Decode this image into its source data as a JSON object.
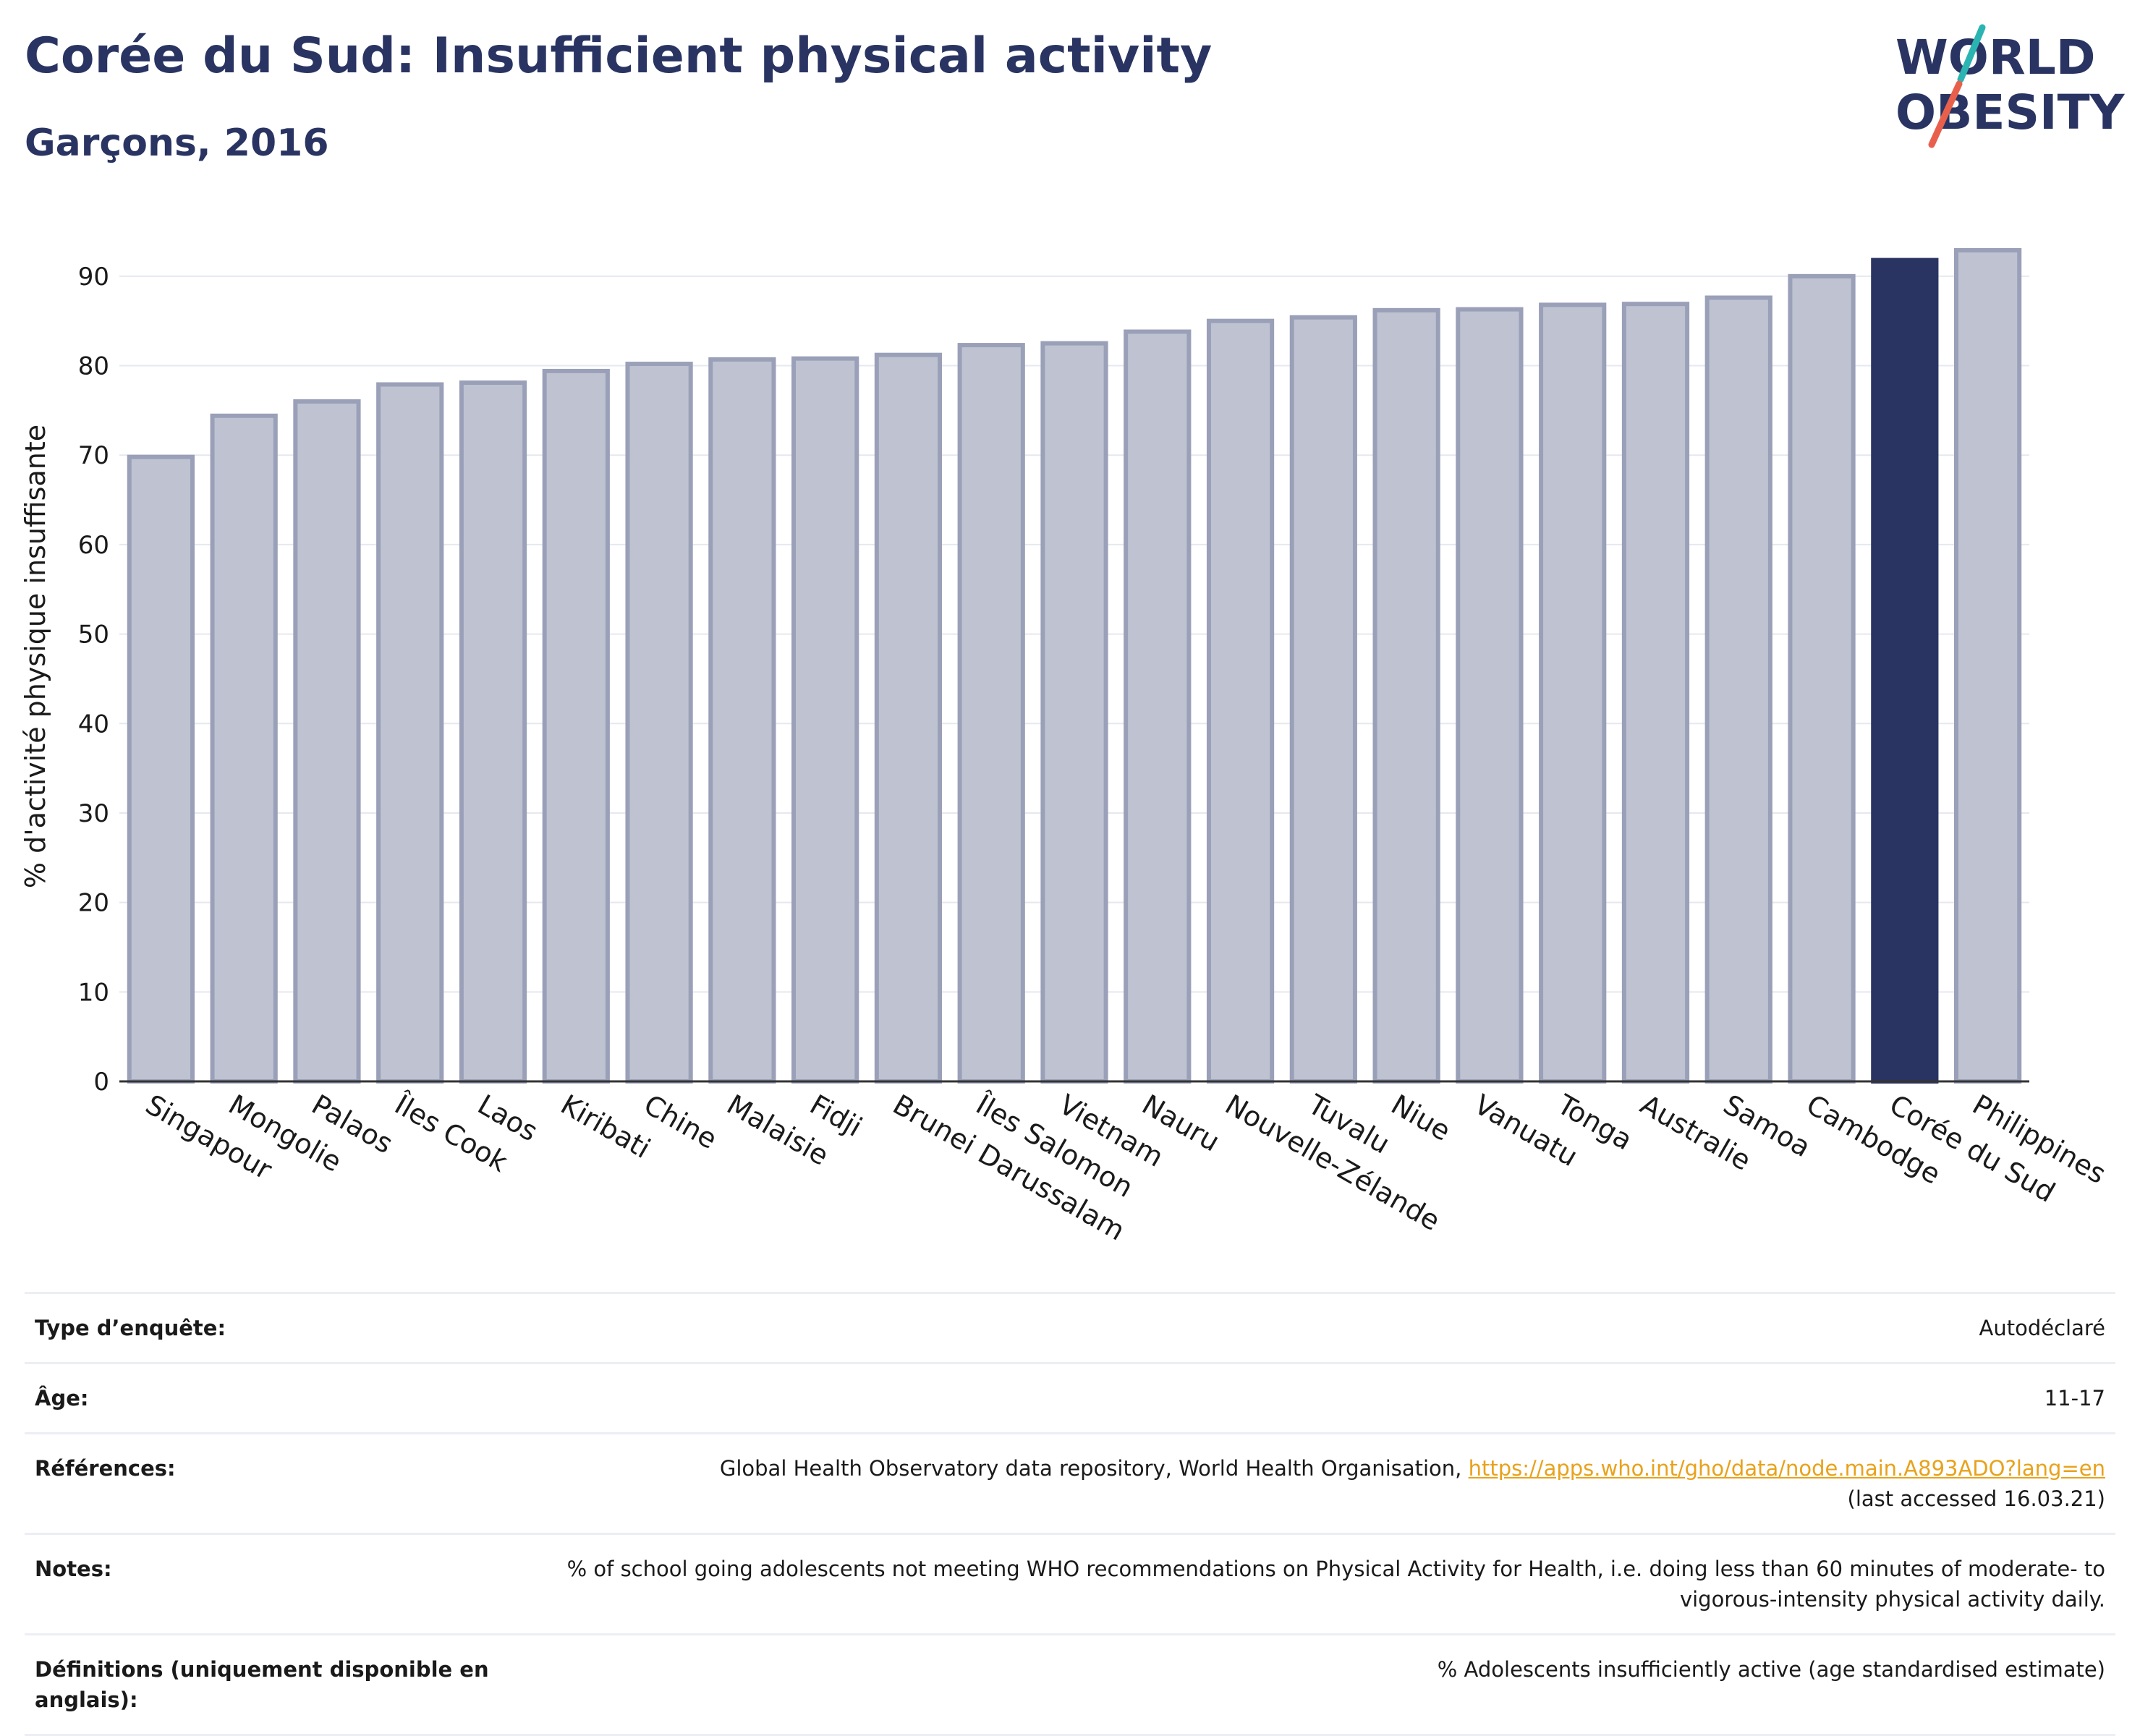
{
  "header": {
    "title": "Corée du Sud: Insufficient physical activity",
    "subtitle": "Garçons, 2016"
  },
  "logo": {
    "line1": "WORLD",
    "line2": "OBESITY",
    "accent_teal": "#2bb5b2",
    "accent_red": "#e8604c",
    "text_color": "#293462"
  },
  "chart_data": {
    "type": "bar",
    "title": "Corée du Sud: Insufficient physical activity",
    "subtitle": "Garçons, 2016",
    "xlabel": "",
    "ylabel": "% d'activité physique insuffisante",
    "ylim": [
      0,
      95
    ],
    "yticks": [
      0,
      10,
      20,
      30,
      40,
      50,
      60,
      70,
      80,
      90
    ],
    "grid": true,
    "categories": [
      "Singapour",
      "Mongolie",
      "Palaos",
      "Îles Cook",
      "Laos",
      "Kiribati",
      "Chine",
      "Malaisie",
      "Fidji",
      "Brunei Darussalam",
      "Îles Salomon",
      "Vietnam",
      "Nauru",
      "Nouvelle-Zélande",
      "Tuvalu",
      "Niue",
      "Vanuatu",
      "Tonga",
      "Australie",
      "Samoa",
      "Cambodge",
      "Corée du Sud",
      "Philippines"
    ],
    "values": [
      69.8,
      74.4,
      76.0,
      77.9,
      78.1,
      79.4,
      80.2,
      80.7,
      80.8,
      81.2,
      82.3,
      82.5,
      83.8,
      85.0,
      85.4,
      86.2,
      86.3,
      86.8,
      86.9,
      87.6,
      90.0,
      91.8,
      92.9
    ],
    "highlight": "Corée du Sud",
    "colors": {
      "bar": "#bfc3d1",
      "bar_edge": "#9aa0b8",
      "highlight": "#293462",
      "grid": "#e6e8ef"
    }
  },
  "info": {
    "rows": [
      {
        "label": "Type d’enquête:",
        "value": "Autodéclaré"
      },
      {
        "label": "Âge:",
        "value": "11-17"
      },
      {
        "label": "Références:",
        "value": "Global Health Observatory data repository, World Health Organisation, ",
        "link": "https://apps.who.int/gho/data/node.main.A893ADO?lang=en",
        "suffix": "(last accessed 16.03.21)"
      },
      {
        "label": "Notes:",
        "value": "% of school going adolescents not meeting WHO recommendations on Physical Activity for Health, i.e. doing less than 60 minutes of moderate- to vigorous-intensity physical activity daily."
      },
      {
        "label": "Définitions (uniquement disponible en anglais):",
        "value": "% Adolescents insufficiently active (age standardised estimate)"
      }
    ]
  }
}
